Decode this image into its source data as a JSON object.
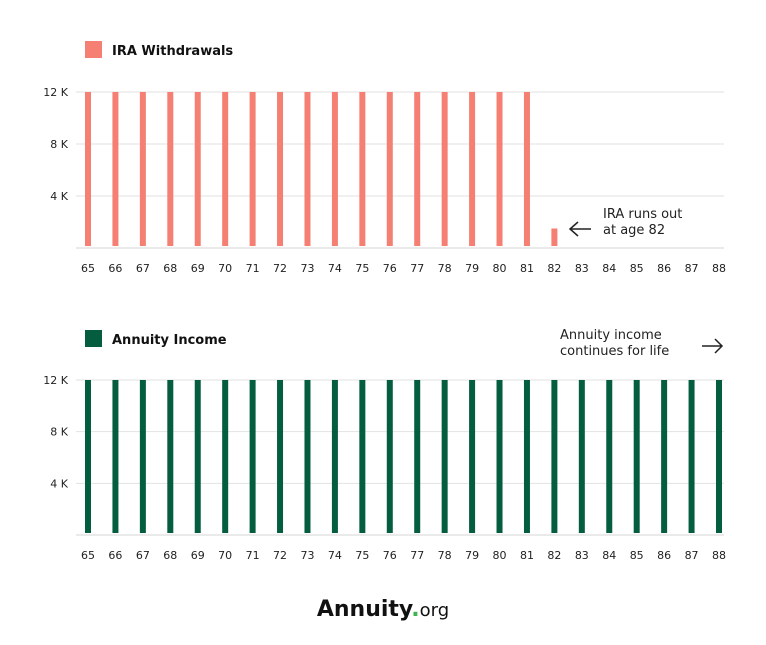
{
  "colors": {
    "ira": "#f47f72",
    "annuity": "#045d3f",
    "grid": "#e2e2e2"
  },
  "chart_data": [
    {
      "type": "bar",
      "legend": "IRA Withdrawals",
      "categories": [
        "65",
        "66",
        "67",
        "68",
        "69",
        "70",
        "71",
        "72",
        "73",
        "74",
        "75",
        "76",
        "77",
        "78",
        "79",
        "80",
        "81",
        "82",
        "83",
        "84",
        "85",
        "86",
        "87",
        "88"
      ],
      "values": [
        12000,
        12000,
        12000,
        12000,
        12000,
        12000,
        12000,
        12000,
        12000,
        12000,
        12000,
        12000,
        12000,
        12000,
        12000,
        12000,
        12000,
        1500,
        0,
        0,
        0,
        0,
        0,
        0
      ],
      "yticks": [
        "4 K",
        "8 K",
        "12 K"
      ],
      "ylim": [
        0,
        12000
      ],
      "annotation": [
        "IRA runs out",
        "at age 82"
      ]
    },
    {
      "type": "bar",
      "legend": "Annuity Income",
      "categories": [
        "65",
        "66",
        "67",
        "68",
        "69",
        "70",
        "71",
        "72",
        "73",
        "74",
        "75",
        "76",
        "77",
        "78",
        "79",
        "80",
        "81",
        "82",
        "83",
        "84",
        "85",
        "86",
        "87",
        "88"
      ],
      "values": [
        12000,
        12000,
        12000,
        12000,
        12000,
        12000,
        12000,
        12000,
        12000,
        12000,
        12000,
        12000,
        12000,
        12000,
        12000,
        12000,
        12000,
        12000,
        12000,
        12000,
        12000,
        12000,
        12000,
        12000
      ],
      "yticks": [
        "4 K",
        "8 K",
        "12 K"
      ],
      "ylim": [
        0,
        12000
      ],
      "annotation": [
        "Annuity income",
        "continues for life"
      ]
    }
  ],
  "logo": {
    "main": "Annuity",
    "dot": ".",
    "suffix": "org"
  }
}
